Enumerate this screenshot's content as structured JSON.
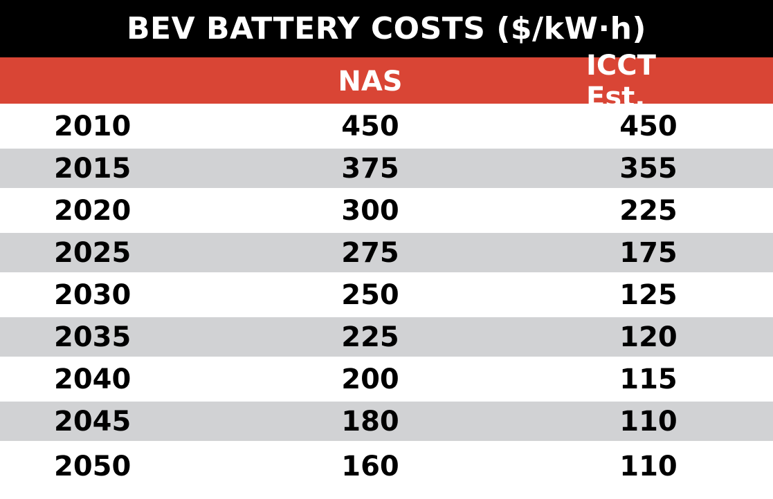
{
  "chart_data": {
    "type": "table",
    "title": "BEV BATTERY COSTS ($/kW·h)",
    "columns": [
      "",
      "NAS",
      "ICCT Est."
    ],
    "rows": [
      [
        "2010",
        "450",
        "450"
      ],
      [
        "2015",
        "375",
        "355"
      ],
      [
        "2020",
        "300",
        "225"
      ],
      [
        "2025",
        "275",
        "175"
      ],
      [
        "2030",
        "250",
        "125"
      ],
      [
        "2035",
        "225",
        "120"
      ],
      [
        "2040",
        "200",
        "115"
      ],
      [
        "2045",
        "180",
        "110"
      ],
      [
        "2050",
        "160",
        "110"
      ]
    ],
    "colors": {
      "title_bg": "#000000",
      "header_bg": "#d94535",
      "stripe": "#d1d2d4"
    }
  }
}
